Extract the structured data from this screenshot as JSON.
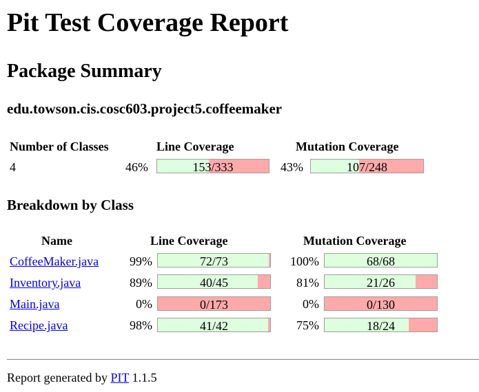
{
  "title": "Pit Test Coverage Report",
  "package_summary": {
    "heading": "Package Summary",
    "package_name": "edu.towson.cis.cosc603.project5.coffeemaker",
    "headers": {
      "classes": "Number of Classes",
      "line": "Line Coverage",
      "mutation": "Mutation Coverage"
    },
    "classes": "4",
    "line": {
      "pct": "46%",
      "text": "153/333",
      "fraction": 0.46
    },
    "mutation": {
      "pct": "43%",
      "text": "107/248",
      "fraction": 0.43
    }
  },
  "breakdown": {
    "heading": "Breakdown by Class",
    "headers": {
      "name": "Name",
      "line": "Line Coverage",
      "mutation": "Mutation Coverage"
    },
    "rows": [
      {
        "name": "CoffeeMaker.java",
        "line_pct": "99%",
        "line_text": "72/73",
        "line_fraction": 0.99,
        "mut_pct": "100%",
        "mut_text": "68/68",
        "mut_fraction": 1.0
      },
      {
        "name": "Inventory.java",
        "line_pct": "89%",
        "line_text": "40/45",
        "line_fraction": 0.89,
        "mut_pct": "81%",
        "mut_text": "21/26",
        "mut_fraction": 0.81
      },
      {
        "name": "Main.java",
        "line_pct": "0%",
        "line_text": "0/173",
        "line_fraction": 0.0,
        "mut_pct": "0%",
        "mut_text": "0/130",
        "mut_fraction": 0.0
      },
      {
        "name": "Recipe.java",
        "line_pct": "98%",
        "line_text": "41/42",
        "line_fraction": 0.98,
        "mut_pct": "75%",
        "mut_text": "18/24",
        "mut_fraction": 0.75
      }
    ]
  },
  "footer": {
    "prefix": "Report generated by",
    "link": "PIT",
    "version": "1.1.5"
  },
  "colors": {
    "covered": "#ddffdd",
    "uncovered": "#ffaaaa",
    "link": "#0000ee"
  }
}
